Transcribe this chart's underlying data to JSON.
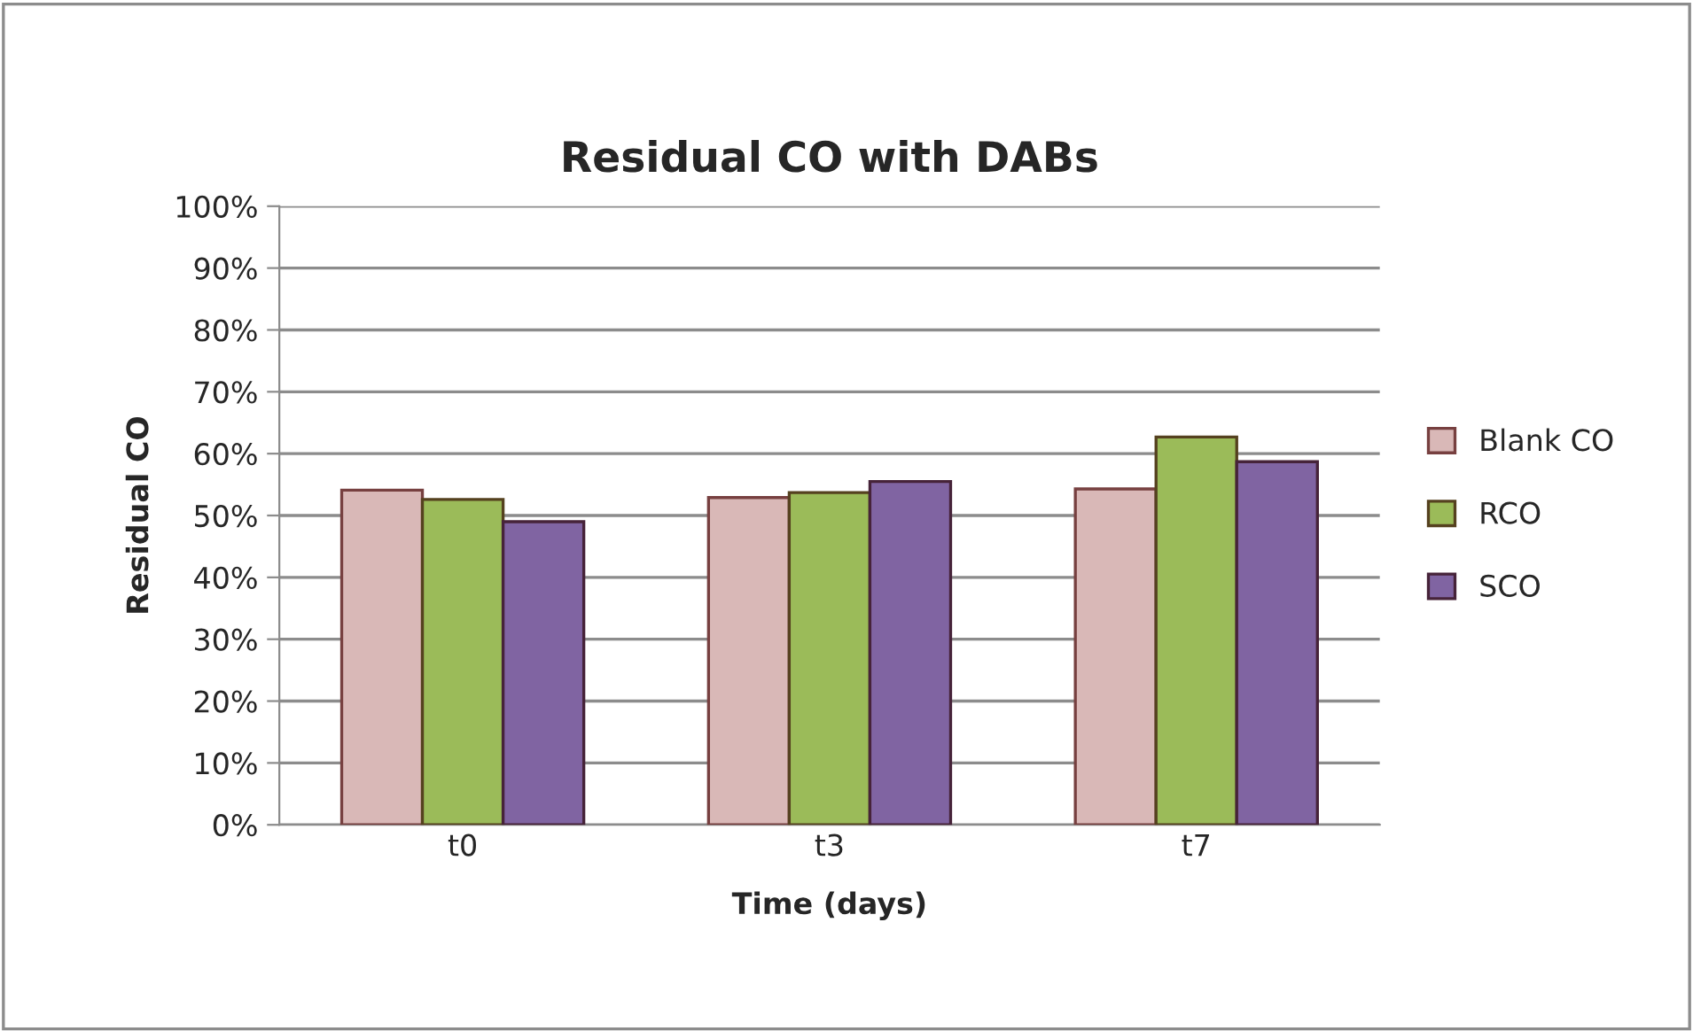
{
  "chart_data": {
    "type": "bar",
    "title": "Residual CO with DABs",
    "xlabel": "Time (days)",
    "ylabel": "Residual CO",
    "categories": [
      "t0",
      "t3",
      "t7"
    ],
    "series": [
      {
        "name": "Blank CO",
        "color": "#d9b8b7",
        "values": [
          54.1,
          52.9,
          54.3
        ]
      },
      {
        "name": "RCO",
        "color": "#9bbb59",
        "values": [
          52.6,
          53.7,
          62.7
        ]
      },
      {
        "name": "SCO",
        "color": "#8064a2",
        "values": [
          49.0,
          55.5,
          58.7
        ]
      }
    ],
    "ylim": [
      0,
      100
    ],
    "yticks": [
      {
        "value": 0,
        "label": "0%"
      },
      {
        "value": 10,
        "label": "10%"
      },
      {
        "value": 20,
        "label": "20%"
      },
      {
        "value": 30,
        "label": "30%"
      },
      {
        "value": 40,
        "label": "40%"
      },
      {
        "value": 50,
        "label": "50%"
      },
      {
        "value": 60,
        "label": "60%"
      },
      {
        "value": 70,
        "label": "70%"
      },
      {
        "value": 80,
        "label": "80%"
      },
      {
        "value": 90,
        "label": "90%"
      },
      {
        "value": 100,
        "label": "100%"
      }
    ],
    "grid": "y",
    "legend": "right"
  }
}
